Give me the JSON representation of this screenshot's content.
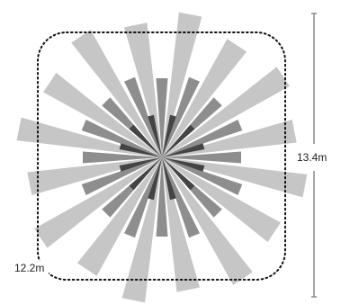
{
  "dimensions": {
    "width_label": "12.2m",
    "height_label": "13.4m"
  },
  "colors": {
    "outer_rays": "#c6c6c6",
    "middle_rays": "#8e8e8e",
    "inner_rays": "#444444",
    "boundary": "#111111",
    "dimension_line": "#8a8a8a"
  }
}
